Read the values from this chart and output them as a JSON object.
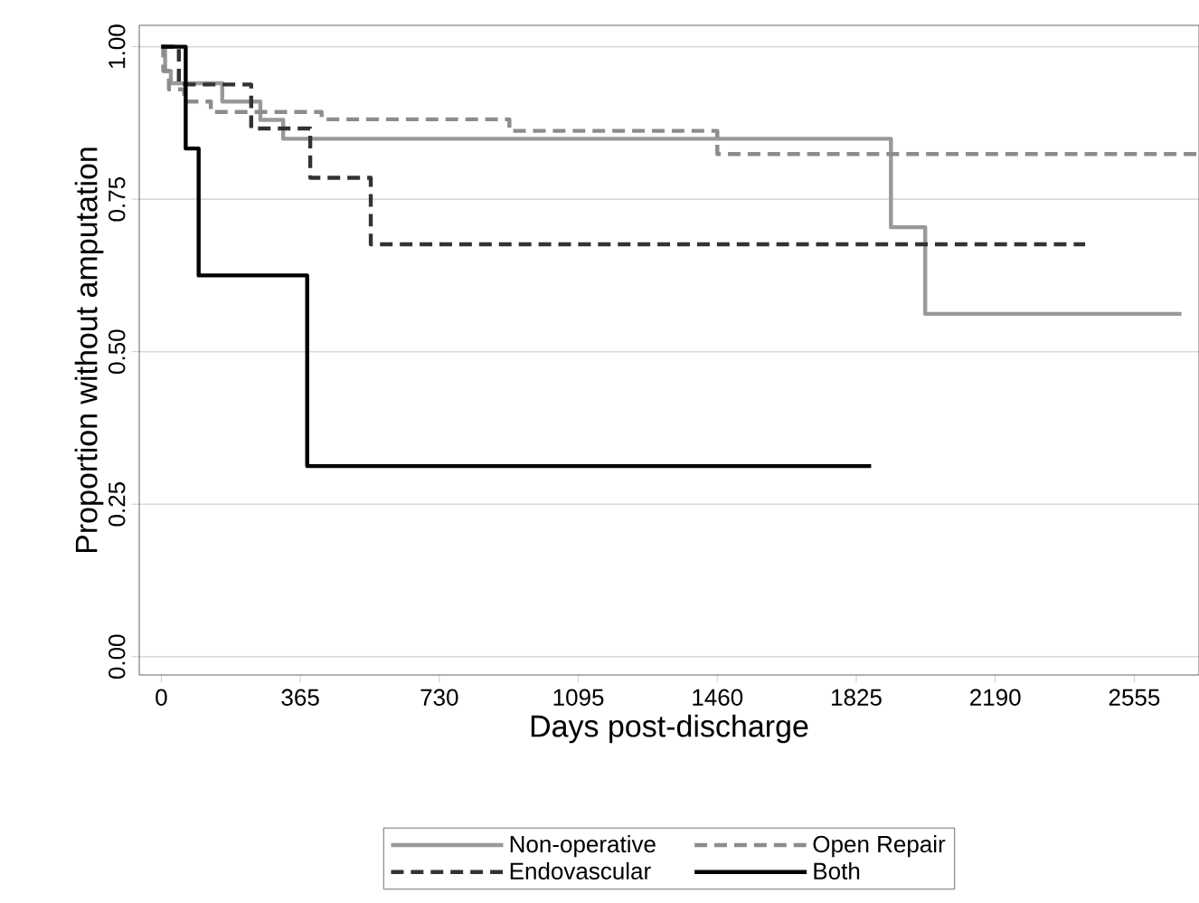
{
  "chart_data": {
    "type": "step",
    "xlabel": "Days post-discharge",
    "ylabel": "Proportion without amputation",
    "xlim": [
      -58,
      2725
    ],
    "ylim": [
      -0.03,
      1.035
    ],
    "xticks": [
      0,
      365,
      730,
      1095,
      1460,
      1825,
      2190,
      2555
    ],
    "yticks": [
      {
        "value": 0,
        "label": "0.00"
      },
      {
        "value": 0.25,
        "label": "0.25"
      },
      {
        "value": 0.5,
        "label": "0.50"
      },
      {
        "value": 0.75,
        "label": "0.75"
      },
      {
        "value": 1,
        "label": "1.00"
      }
    ],
    "grid": "y",
    "legend": "bottom",
    "series": [
      {
        "name": "Non-operative",
        "color": "#999999",
        "line_style": "solid",
        "x": [
          0,
          10,
          25,
          160,
          260,
          320,
          1916,
          2006,
          2679
        ],
        "values": [
          1.0,
          0.96,
          0.94,
          0.91,
          0.88,
          0.849,
          0.704,
          0.562,
          0.562
        ]
      },
      {
        "name": "Open Repair",
        "color": "#8c8c8c",
        "line_style": "dashed",
        "x": [
          0,
          5,
          20,
          60,
          130,
          421,
          914,
          1460,
          2725
        ],
        "values": [
          1.0,
          0.96,
          0.93,
          0.91,
          0.893,
          0.881,
          0.862,
          0.824,
          0.824
        ]
      },
      {
        "name": "Endovascular",
        "color": "#333333",
        "line_style": "dashed",
        "x": [
          0,
          46,
          236,
          391,
          550,
          2426
        ],
        "values": [
          1.0,
          0.938,
          0.866,
          0.785,
          0.676,
          0.676
        ]
      },
      {
        "name": "Both",
        "color": "#000000",
        "line_style": "solid",
        "x": [
          0,
          64,
          98,
          383,
          1864
        ],
        "values": [
          1.0,
          0.833,
          0.625,
          0.3125,
          0.3125
        ]
      }
    ]
  }
}
